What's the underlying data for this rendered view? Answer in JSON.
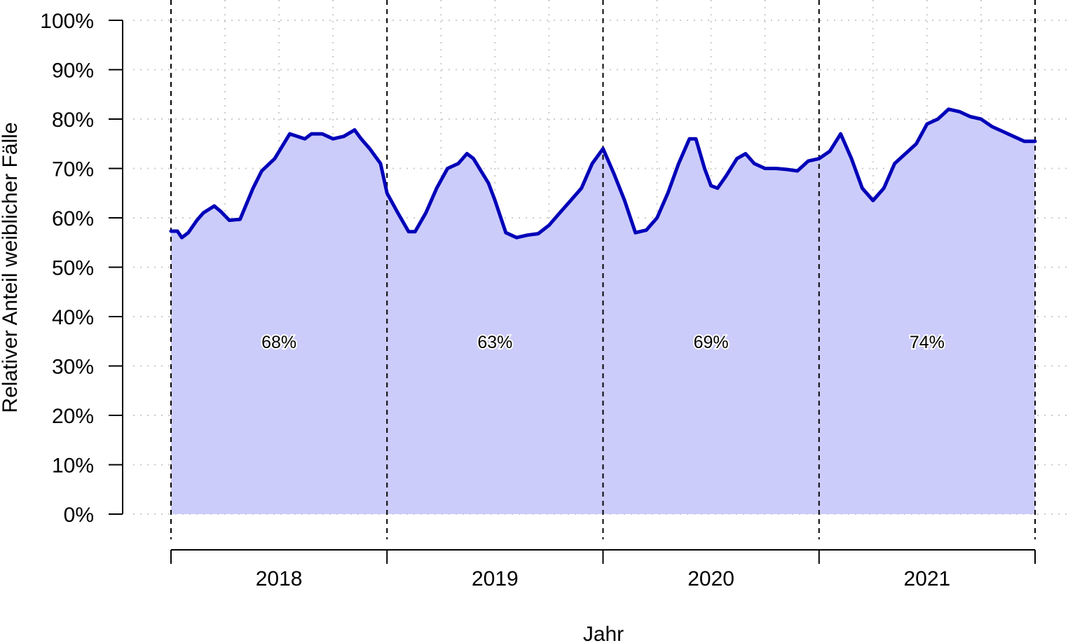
{
  "chart_data": {
    "type": "area",
    "xlabel": "Jahr",
    "ylabel": "Relativer Anteil weiblicher Fälle",
    "ylim": [
      0,
      100
    ],
    "y_ticks": [
      "0%",
      "10%",
      "20%",
      "30%",
      "40%",
      "50%",
      "60%",
      "70%",
      "80%",
      "90%",
      "100%"
    ],
    "year_labels": [
      "2018",
      "2019",
      "2020",
      "2021"
    ],
    "year_means": [
      {
        "year": "2018",
        "label": "68%"
      },
      {
        "year": "2019",
        "label": "63%"
      },
      {
        "year": "2020",
        "label": "69%"
      },
      {
        "year": "2021",
        "label": "74%"
      }
    ],
    "grid": true,
    "colors": {
      "line": "#0000b8",
      "fill": "#ccccfa",
      "year_lines": "#000000",
      "grid": "#cccccc"
    },
    "x_unit": "Jahr (Dezimaljahr)",
    "series": [
      {
        "points": [
          [
            2018.0,
            57.3
          ],
          [
            2018.03,
            57.3
          ],
          [
            2018.05,
            56.0
          ],
          [
            2018.08,
            57.0
          ],
          [
            2018.12,
            59.5
          ],
          [
            2018.15,
            61.0
          ],
          [
            2018.2,
            62.4
          ],
          [
            2018.23,
            61.3
          ],
          [
            2018.27,
            59.5
          ],
          [
            2018.32,
            59.7
          ],
          [
            2018.38,
            66.0
          ],
          [
            2018.42,
            69.5
          ],
          [
            2018.48,
            72.0
          ],
          [
            2018.55,
            77.0
          ],
          [
            2018.62,
            76.0
          ],
          [
            2018.65,
            77.0
          ],
          [
            2018.7,
            77.0
          ],
          [
            2018.75,
            76.0
          ],
          [
            2018.8,
            76.5
          ],
          [
            2018.85,
            77.8
          ],
          [
            2018.88,
            76.0
          ],
          [
            2018.92,
            74.0
          ],
          [
            2018.97,
            71.0
          ],
          [
            2019.0,
            65.0
          ],
          [
            2019.05,
            61.0
          ],
          [
            2019.1,
            57.2
          ],
          [
            2019.13,
            57.2
          ],
          [
            2019.18,
            61.0
          ],
          [
            2019.23,
            66.0
          ],
          [
            2019.28,
            70.0
          ],
          [
            2019.33,
            71.0
          ],
          [
            2019.37,
            73.0
          ],
          [
            2019.4,
            72.0
          ],
          [
            2019.47,
            67.0
          ],
          [
            2019.5,
            63.5
          ],
          [
            2019.55,
            57.0
          ],
          [
            2019.6,
            56.0
          ],
          [
            2019.65,
            56.5
          ],
          [
            2019.7,
            56.8
          ],
          [
            2019.75,
            58.5
          ],
          [
            2019.8,
            61.0
          ],
          [
            2019.85,
            63.5
          ],
          [
            2019.9,
            66.0
          ],
          [
            2019.95,
            71.0
          ],
          [
            2020.0,
            74.0
          ],
          [
            2020.05,
            69.0
          ],
          [
            2020.1,
            63.5
          ],
          [
            2020.15,
            57.0
          ],
          [
            2020.2,
            57.5
          ],
          [
            2020.25,
            60.0
          ],
          [
            2020.3,
            65.0
          ],
          [
            2020.35,
            71.0
          ],
          [
            2020.4,
            76.0
          ],
          [
            2020.43,
            76.0
          ],
          [
            2020.47,
            70.0
          ],
          [
            2020.5,
            66.5
          ],
          [
            2020.53,
            66.0
          ],
          [
            2020.57,
            68.5
          ],
          [
            2020.62,
            72.0
          ],
          [
            2020.66,
            73.0
          ],
          [
            2020.7,
            71.0
          ],
          [
            2020.75,
            70.0
          ],
          [
            2020.8,
            70.0
          ],
          [
            2020.85,
            69.8
          ],
          [
            2020.9,
            69.5
          ],
          [
            2020.95,
            71.5
          ],
          [
            2021.0,
            72.0
          ],
          [
            2021.05,
            73.5
          ],
          [
            2021.1,
            77.0
          ],
          [
            2021.15,
            72.0
          ],
          [
            2021.2,
            66.0
          ],
          [
            2021.25,
            63.5
          ],
          [
            2021.3,
            66.0
          ],
          [
            2021.35,
            71.0
          ],
          [
            2021.4,
            73.0
          ],
          [
            2021.45,
            75.0
          ],
          [
            2021.5,
            79.0
          ],
          [
            2021.55,
            80.0
          ],
          [
            2021.6,
            82.0
          ],
          [
            2021.65,
            81.5
          ],
          [
            2021.7,
            80.5
          ],
          [
            2021.75,
            80.0
          ],
          [
            2021.8,
            78.5
          ],
          [
            2021.85,
            77.5
          ],
          [
            2021.9,
            76.5
          ],
          [
            2021.95,
            75.5
          ],
          [
            2022.0,
            75.5
          ]
        ]
      }
    ]
  }
}
